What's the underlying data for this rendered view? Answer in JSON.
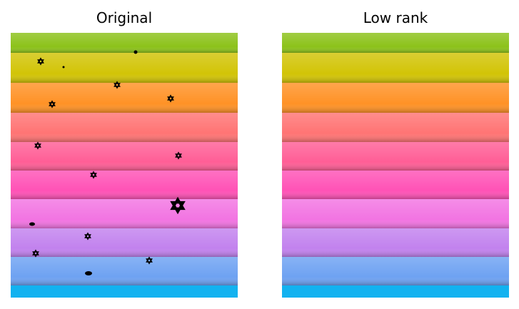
{
  "panels": [
    {
      "title": "Original"
    },
    {
      "title": "Low rank"
    }
  ]
}
